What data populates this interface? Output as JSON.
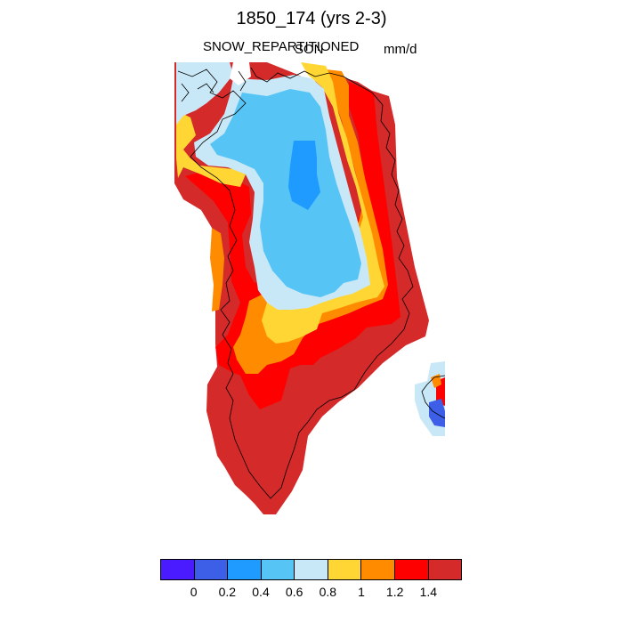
{
  "header": {
    "title": "1850_174 (yrs 2-3)",
    "variable": "SNOW_REPARTITIONED",
    "season": "SON",
    "units": "mm/d"
  },
  "colorbar": {
    "colors": [
      "#4a1bff",
      "#3d5fe8",
      "#1f9bff",
      "#56c4f5",
      "#c9e8f7",
      "#ffd633",
      "#ff8c00",
      "#ff0000",
      "#d42a2a"
    ],
    "labels": [
      "0",
      "0.2",
      "0.4",
      "0.6",
      "0.8",
      "1",
      "1.2",
      "1.4"
    ]
  },
  "map": {
    "region": "Greenland",
    "outline_color": "#000000"
  }
}
